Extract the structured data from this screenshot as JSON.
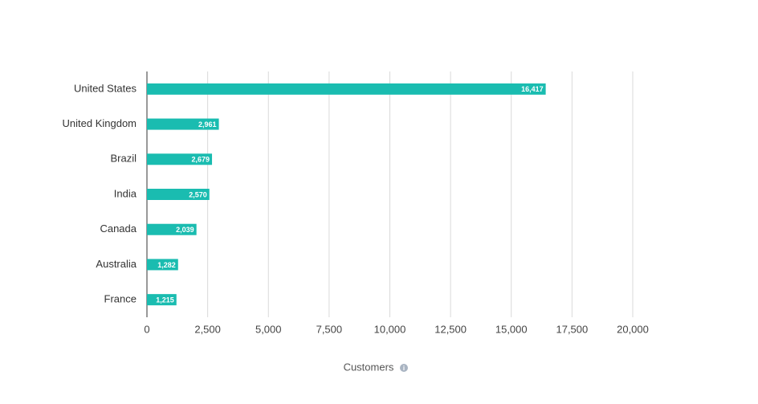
{
  "chart_data": {
    "type": "bar",
    "orientation": "horizontal",
    "x_label": "Customers",
    "categories": [
      "United States",
      "United Kingdom",
      "Brazil",
      "India",
      "Canada",
      "Australia",
      "France"
    ],
    "values": [
      16417,
      2961,
      2679,
      2570,
      2039,
      1282,
      1215
    ],
    "value_labels": [
      "16,417",
      "2,961",
      "2,679",
      "2,570",
      "2,039",
      "1,282",
      "1,215"
    ],
    "color": "#1abcb0",
    "xlim": [
      0,
      20000
    ],
    "xticks": [
      0,
      {
        "value": 2500,
        "label": "2,500"
      },
      {
        "value": 5000,
        "label": "5,000"
      },
      {
        "value": 7500,
        "label": "7,500"
      },
      {
        "value": 10000,
        "label": "10,000"
      },
      {
        "value": 12500,
        "label": "12,500"
      },
      {
        "value": 15000,
        "label": "15,000"
      },
      {
        "value": 17500,
        "label": "17,500"
      },
      {
        "value": 20000,
        "label": "20,000"
      }
    ],
    "grid": true
  }
}
